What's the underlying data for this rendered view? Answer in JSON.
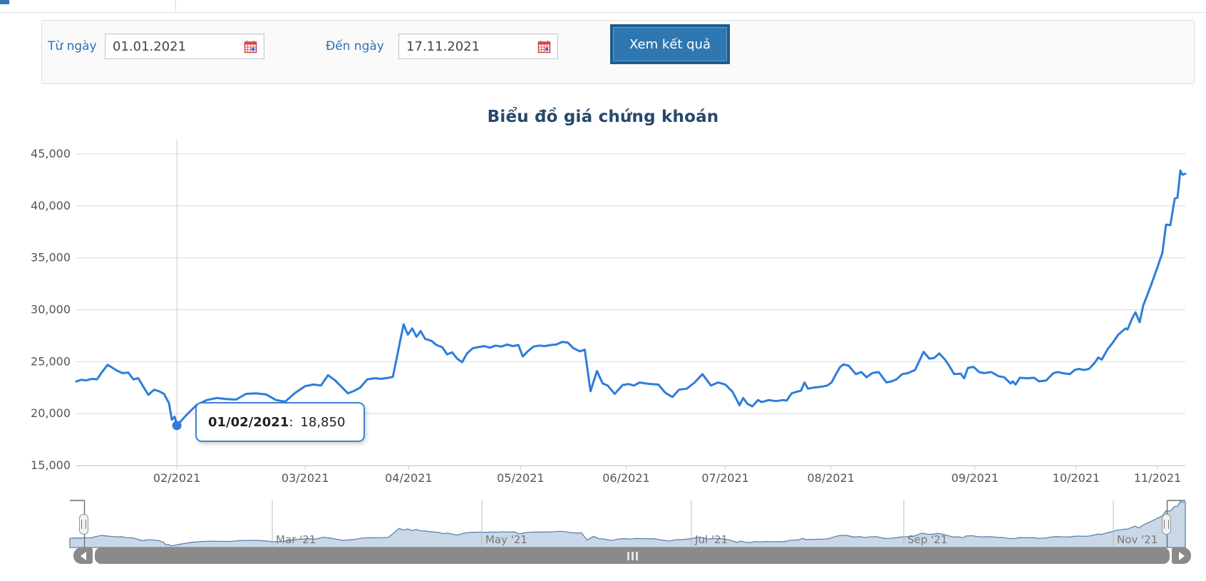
{
  "page": {
    "top_accent_color": "#3b76ae"
  },
  "form": {
    "from_label": "Từ ngày",
    "from_value": "01.01.2021",
    "to_label": "Đến ngày",
    "to_value": "17.11.2021",
    "submit_label": "Xem kết quả",
    "label_color": "#2a72b5"
  },
  "chart_data": {
    "type": "line",
    "title": "Biểu đồ giá chứng khoán",
    "title_color": "#26486b",
    "ylim": [
      15000,
      45000
    ],
    "grid": true,
    "yticks": [
      "45,000",
      "40,000",
      "35,000",
      "30,000",
      "25,000",
      "20,000",
      "15,000"
    ],
    "xticks": [
      {
        "label": "02/2021",
        "f": 0.0907
      },
      {
        "label": "03/2021",
        "f": 0.2064
      },
      {
        "label": "04/2021",
        "f": 0.2997
      },
      {
        "label": "05/2021",
        "f": 0.4006
      },
      {
        "label": "06/2021",
        "f": 0.4958
      },
      {
        "label": "07/2021",
        "f": 0.5852
      },
      {
        "label": "08/2021",
        "f": 0.6804
      },
      {
        "label": "09/2021",
        "f": 0.8103
      },
      {
        "label": "10/2021",
        "f": 0.9016
      },
      {
        "label": "11/2021",
        "f": 0.9749
      }
    ],
    "series": [
      {
        "name": "Giá chứng khoán",
        "color": "#2e7dd9",
        "points": [
          [
            0,
            23100
          ],
          [
            0.0045,
            23250
          ],
          [
            0.009,
            23200
          ],
          [
            0.0141,
            23350
          ],
          [
            0.0187,
            23300
          ],
          [
            0.0232,
            24000
          ],
          [
            0.0283,
            24700
          ],
          [
            0.0328,
            24400
          ],
          [
            0.0373,
            24100
          ],
          [
            0.0418,
            23900
          ],
          [
            0.0469,
            23950
          ],
          [
            0.0514,
            23300
          ],
          [
            0.0559,
            23400
          ],
          [
            0.0604,
            22600
          ],
          [
            0.065,
            21800
          ],
          [
            0.0701,
            22300
          ],
          [
            0.0746,
            22150
          ],
          [
            0.0791,
            21900
          ],
          [
            0.0836,
            21000
          ],
          [
            0.0862,
            19400
          ],
          [
            0.0887,
            19700
          ],
          [
            0.0907,
            18850
          ],
          [
            0.0997,
            19900
          ],
          [
            0.1087,
            20850
          ],
          [
            0.1177,
            21300
          ],
          [
            0.1267,
            21500
          ],
          [
            0.135,
            21400
          ],
          [
            0.1441,
            21350
          ],
          [
            0.1531,
            21900
          ],
          [
            0.1621,
            21950
          ],
          [
            0.1711,
            21850
          ],
          [
            0.1801,
            21300
          ],
          [
            0.1884,
            21150
          ],
          [
            0.1974,
            22000
          ],
          [
            0.2064,
            22650
          ],
          [
            0.2141,
            22800
          ],
          [
            0.2206,
            22700
          ],
          [
            0.227,
            23700
          ],
          [
            0.2334,
            23200
          ],
          [
            0.2399,
            22500
          ],
          [
            0.245,
            21950
          ],
          [
            0.2508,
            22200
          ],
          [
            0.2559,
            22500
          ],
          [
            0.2624,
            23300
          ],
          [
            0.2688,
            23400
          ],
          [
            0.2752,
            23350
          ],
          [
            0.2817,
            23450
          ],
          [
            0.2855,
            23550
          ],
          [
            0.2887,
            25200
          ],
          [
            0.292,
            27000
          ],
          [
            0.2952,
            28600
          ],
          [
            0.299,
            27600
          ],
          [
            0.3029,
            28200
          ],
          [
            0.3068,
            27400
          ],
          [
            0.3106,
            27950
          ],
          [
            0.3145,
            27200
          ],
          [
            0.3203,
            27000
          ],
          [
            0.3248,
            26600
          ],
          [
            0.3299,
            26400
          ],
          [
            0.3344,
            25700
          ],
          [
            0.3389,
            25900
          ],
          [
            0.3434,
            25300
          ],
          [
            0.3479,
            24950
          ],
          [
            0.3524,
            25800
          ],
          [
            0.3576,
            26300
          ],
          [
            0.3627,
            26400
          ],
          [
            0.3679,
            26500
          ],
          [
            0.373,
            26350
          ],
          [
            0.3781,
            26550
          ],
          [
            0.3833,
            26450
          ],
          [
            0.3884,
            26650
          ],
          [
            0.3936,
            26500
          ],
          [
            0.3987,
            26600
          ],
          [
            0.4026,
            25500
          ],
          [
            0.4071,
            26000
          ],
          [
            0.4122,
            26450
          ],
          [
            0.4174,
            26550
          ],
          [
            0.4225,
            26500
          ],
          [
            0.4277,
            26600
          ],
          [
            0.4328,
            26650
          ],
          [
            0.4379,
            26900
          ],
          [
            0.4431,
            26850
          ],
          [
            0.4482,
            26300
          ],
          [
            0.454,
            26000
          ],
          [
            0.4585,
            26150
          ],
          [
            0.4637,
            22150
          ],
          [
            0.4695,
            24100
          ],
          [
            0.4746,
            22900
          ],
          [
            0.4791,
            22700
          ],
          [
            0.4855,
            21900
          ],
          [
            0.4926,
            22750
          ],
          [
            0.4977,
            22850
          ],
          [
            0.5029,
            22700
          ],
          [
            0.508,
            23000
          ],
          [
            0.5132,
            22900
          ],
          [
            0.5183,
            22850
          ],
          [
            0.5248,
            22800
          ],
          [
            0.5312,
            22000
          ],
          [
            0.5376,
            21600
          ],
          [
            0.5434,
            22300
          ],
          [
            0.5505,
            22400
          ],
          [
            0.5576,
            23000
          ],
          [
            0.5646,
            23800
          ],
          [
            0.5723,
            22700
          ],
          [
            0.5788,
            23000
          ],
          [
            0.5852,
            22800
          ],
          [
            0.5917,
            22100
          ],
          [
            0.5981,
            20800
          ],
          [
            0.6013,
            21500
          ],
          [
            0.6051,
            20950
          ],
          [
            0.6096,
            20700
          ],
          [
            0.6148,
            21300
          ],
          [
            0.618,
            21100
          ],
          [
            0.6244,
            21300
          ],
          [
            0.6309,
            21200
          ],
          [
            0.6373,
            21300
          ],
          [
            0.6405,
            21250
          ],
          [
            0.645,
            21950
          ],
          [
            0.6495,
            22100
          ],
          [
            0.6534,
            22200
          ],
          [
            0.6566,
            23000
          ],
          [
            0.6598,
            22400
          ],
          [
            0.6643,
            22500
          ],
          [
            0.6688,
            22550
          ],
          [
            0.6727,
            22600
          ],
          [
            0.6772,
            22700
          ],
          [
            0.681,
            23000
          ],
          [
            0.6855,
            23900
          ],
          [
            0.6888,
            24500
          ],
          [
            0.692,
            24750
          ],
          [
            0.6965,
            24600
          ],
          [
            0.7029,
            23800
          ],
          [
            0.708,
            24000
          ],
          [
            0.7125,
            23500
          ],
          [
            0.7177,
            23900
          ],
          [
            0.7235,
            24000
          ],
          [
            0.7305,
            23000
          ],
          [
            0.735,
            23100
          ],
          [
            0.7395,
            23300
          ],
          [
            0.7447,
            23800
          ],
          [
            0.7498,
            23900
          ],
          [
            0.7563,
            24200
          ],
          [
            0.764,
            25950
          ],
          [
            0.7691,
            25300
          ],
          [
            0.7736,
            25350
          ],
          [
            0.7781,
            25800
          ],
          [
            0.7833,
            25200
          ],
          [
            0.7865,
            24700
          ],
          [
            0.7916,
            23800
          ],
          [
            0.7974,
            23850
          ],
          [
            0.8006,
            23400
          ],
          [
            0.8039,
            24400
          ],
          [
            0.809,
            24500
          ],
          [
            0.8141,
            24000
          ],
          [
            0.8186,
            23900
          ],
          [
            0.8251,
            24000
          ],
          [
            0.8315,
            23600
          ],
          [
            0.8367,
            23500
          ],
          [
            0.8424,
            22900
          ],
          [
            0.8444,
            23100
          ],
          [
            0.8469,
            22800
          ],
          [
            0.8508,
            23450
          ],
          [
            0.8572,
            23400
          ],
          [
            0.8637,
            23450
          ],
          [
            0.8682,
            23100
          ],
          [
            0.8746,
            23200
          ],
          [
            0.881,
            23900
          ],
          [
            0.8849,
            24000
          ],
          [
            0.8894,
            23900
          ],
          [
            0.8958,
            23800
          ],
          [
            0.9003,
            24200
          ],
          [
            0.9042,
            24300
          ],
          [
            0.9087,
            24200
          ],
          [
            0.9132,
            24300
          ],
          [
            0.9183,
            24900
          ],
          [
            0.9215,
            25400
          ],
          [
            0.9247,
            25200
          ],
          [
            0.9299,
            26200
          ],
          [
            0.9344,
            26800
          ],
          [
            0.9395,
            27600
          ],
          [
            0.9428,
            27900
          ],
          [
            0.946,
            28200
          ],
          [
            0.9479,
            28100
          ],
          [
            0.9518,
            29100
          ],
          [
            0.955,
            29750
          ],
          [
            0.9588,
            28800
          ],
          [
            0.962,
            30400
          ],
          [
            0.9685,
            32200
          ],
          [
            0.9749,
            34100
          ],
          [
            0.9794,
            35500
          ],
          [
            0.9826,
            38200
          ],
          [
            0.9865,
            38150
          ],
          [
            0.9904,
            40700
          ],
          [
            0.9929,
            40800
          ],
          [
            0.9955,
            43400
          ],
          [
            0.9974,
            43000
          ],
          [
            1,
            43100
          ]
        ]
      }
    ],
    "tooltip": {
      "date": "01/02/2021",
      "separator": ":",
      "value": "18,850",
      "f": 0.0907,
      "v": 18850,
      "border_color": "#3d82d4"
    },
    "navigator": {
      "xticks": [
        {
          "label": "Mar '21",
          "f": 0.1815
        },
        {
          "label": "May '21",
          "f": 0.3693
        },
        {
          "label": "Jul '21",
          "f": 0.5572
        },
        {
          "label": "Sep '21",
          "f": 0.7476
        },
        {
          "label": "Nov '21",
          "f": 0.9355
        }
      ],
      "line_color": "#5b84b1",
      "fill_color": "rgba(91,132,177,0.32)"
    }
  }
}
